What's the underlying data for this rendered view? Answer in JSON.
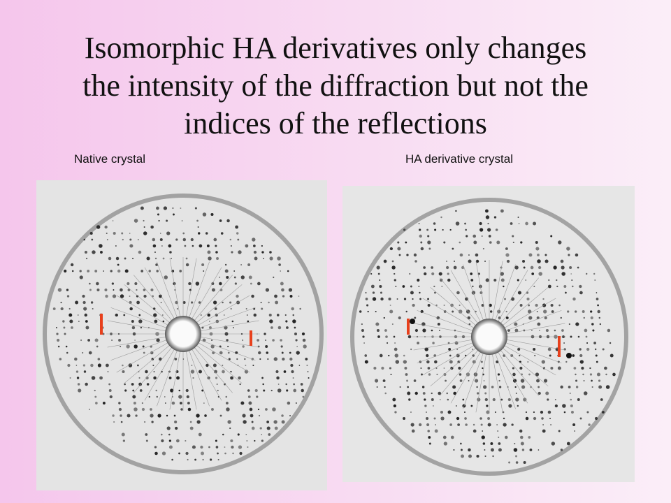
{
  "header": {
    "title": [
      "Isomorphic HA derivatives only changes",
      "the intensity of the diffraction but not the",
      "indices of the reflections"
    ]
  },
  "panels": [
    {
      "caption": "Native crystal"
    },
    {
      "caption": "HA derivative crystal"
    }
  ]
}
